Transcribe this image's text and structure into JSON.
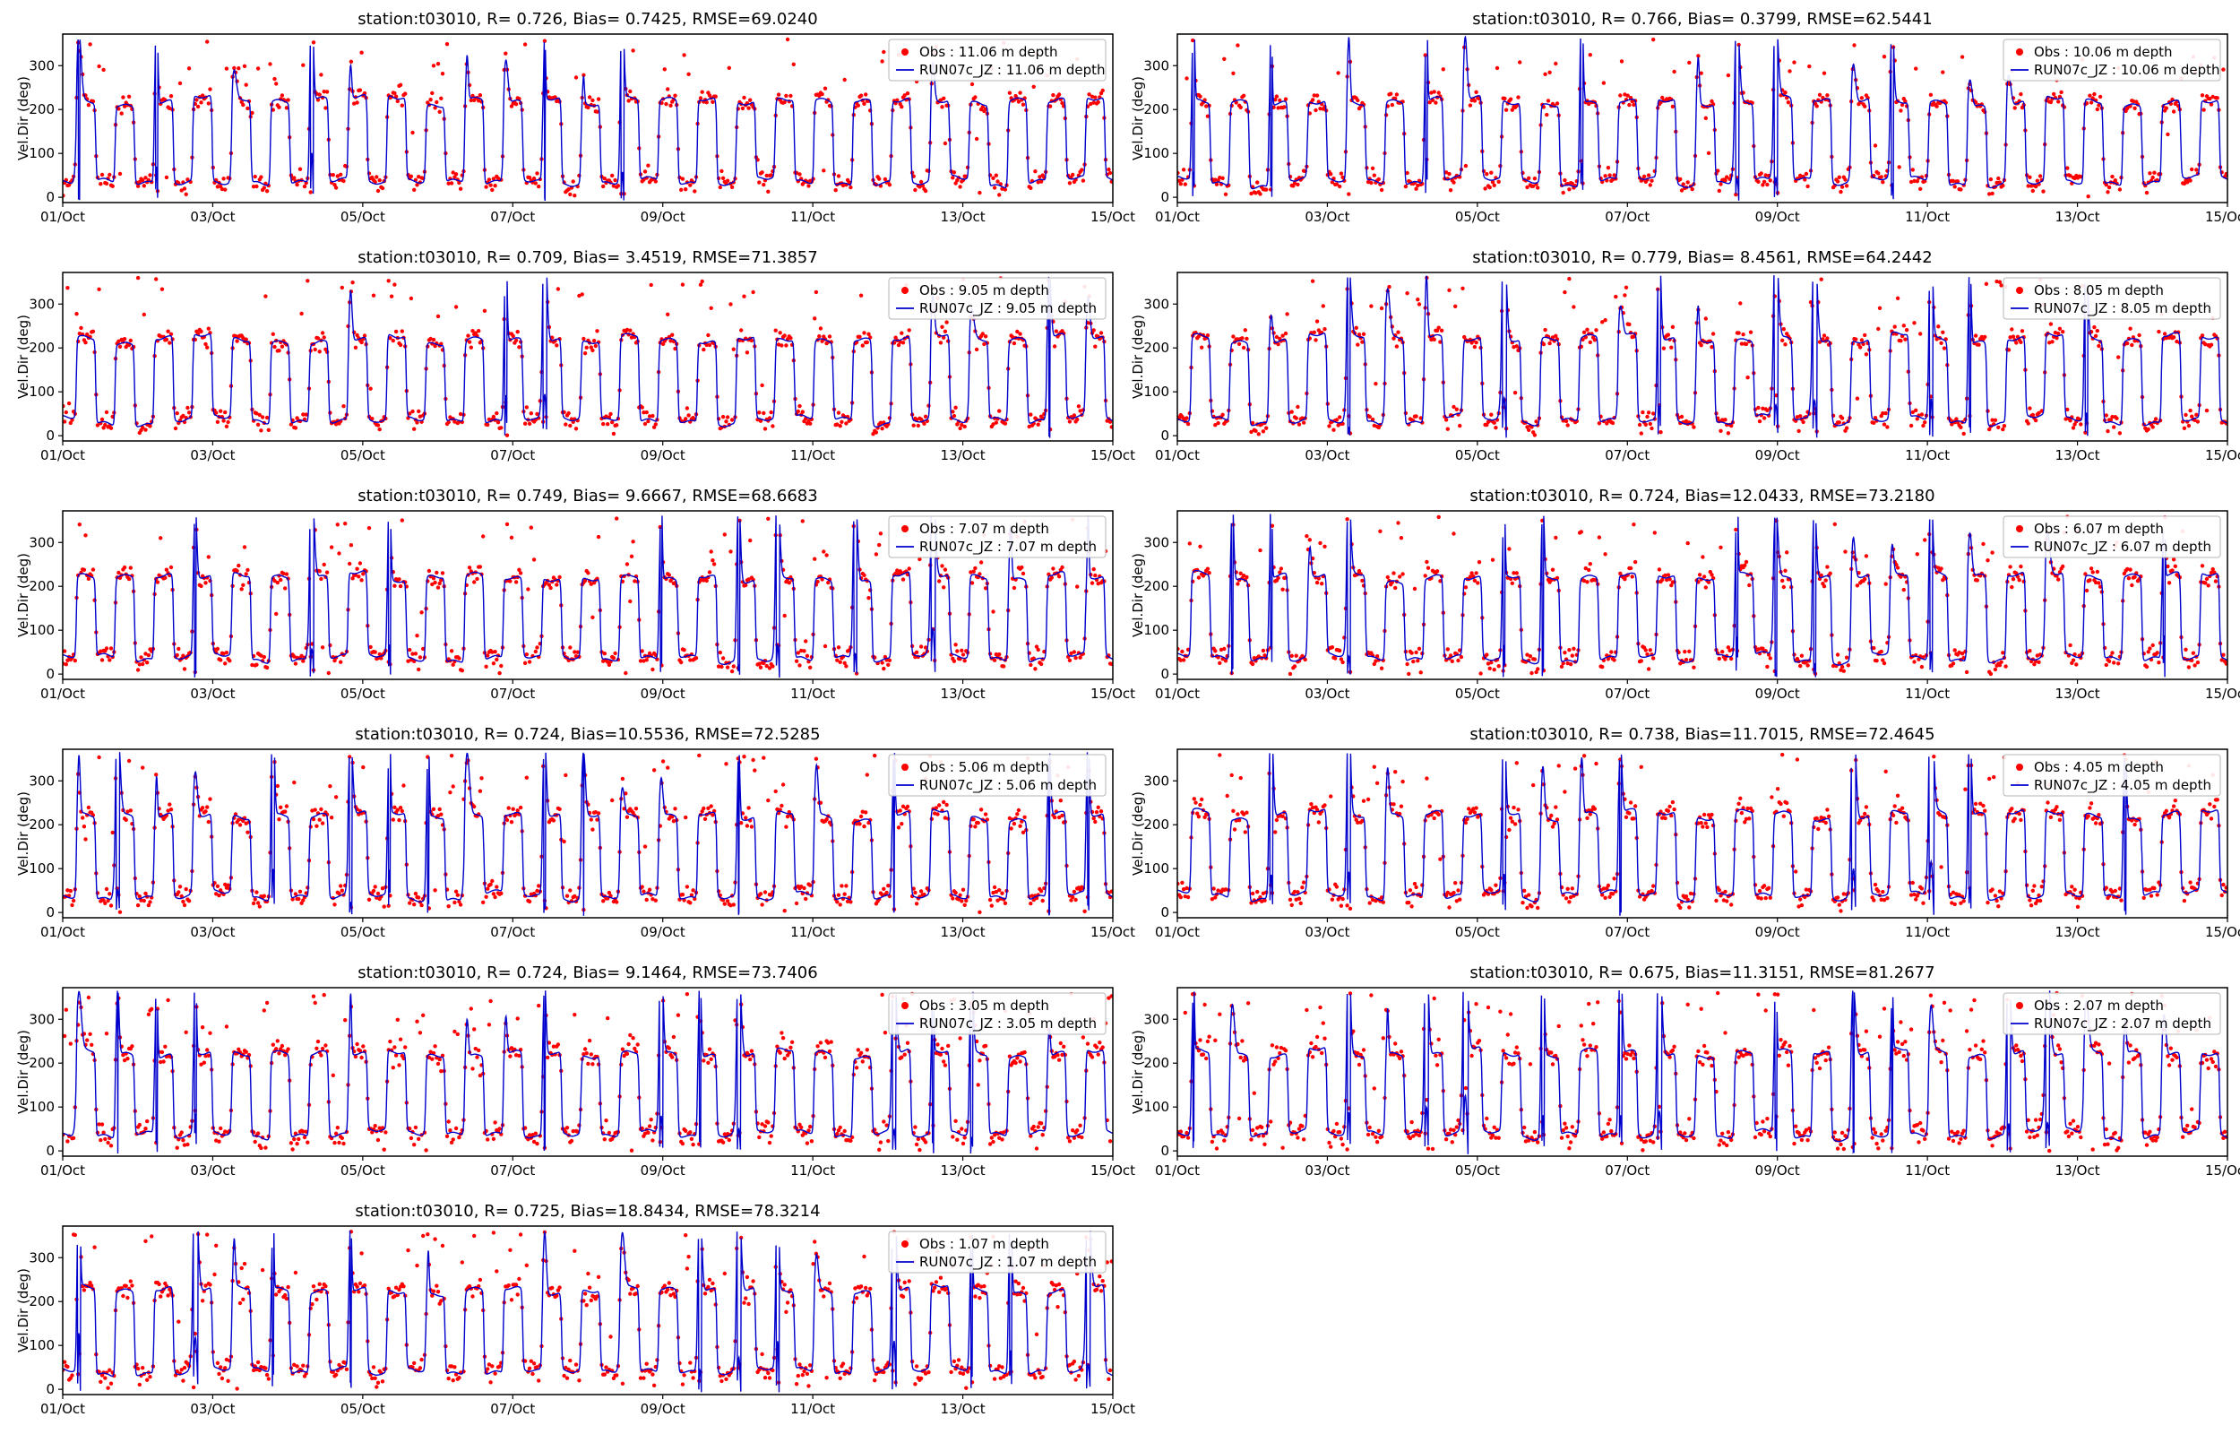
{
  "figure": {
    "rows": 6,
    "cols": 2,
    "background": "#ffffff"
  },
  "chart_data": [
    {
      "type": "scatter+line",
      "title": "station:t03010, R= 0.726, Bias= 0.7425, RMSE=69.0240",
      "station": "t03010",
      "R": 0.726,
      "Bias": 0.7425,
      "RMSE": 69.024,
      "depth": "11.06 m",
      "legend_obs": "Obs : 11.06 m depth",
      "legend_model": "RUN07c_JZ : 11.06 m depth",
      "ylabel": "Vel.Dir (deg)",
      "xticks": [
        "01/Oct",
        "03/Oct",
        "05/Oct",
        "07/Oct",
        "09/Oct",
        "11/Oct",
        "13/Oct",
        "15/Oct"
      ],
      "yticks": [
        0,
        100,
        200,
        300
      ],
      "ylim": [
        -12,
        372
      ],
      "x_range_days": 14,
      "legend_position": "upper right",
      "series": [
        {
          "name": "Obs",
          "style": "scatter",
          "color": "#ff0000"
        },
        {
          "name": "RUN07c_JZ",
          "style": "line",
          "color": "#0000cd"
        }
      ],
      "pattern": {
        "type": "semidiurnal-alternation",
        "period_hours": 12.42,
        "low_deg": 35,
        "high_deg": 220,
        "noise_deg": 10,
        "outlier_rate": 0.05,
        "spike_rate": 0.5,
        "spike_extra": 200,
        "seed": 1
      }
    },
    {
      "type": "scatter+line",
      "title": "station:t03010, R= 0.766, Bias= 0.3799, RMSE=62.5441",
      "station": "t03010",
      "R": 0.766,
      "Bias": 0.3799,
      "RMSE": 62.5441,
      "depth": "10.06 m",
      "legend_obs": "Obs : 10.06 m depth",
      "legend_model": "RUN07c_JZ : 10.06 m depth",
      "ylabel": "Vel.Dir (deg)",
      "xticks": [
        "01/Oct",
        "03/Oct",
        "05/Oct",
        "07/Oct",
        "09/Oct",
        "11/Oct",
        "13/Oct",
        "15/Oct"
      ],
      "yticks": [
        0,
        100,
        200,
        300
      ],
      "ylim": [
        -12,
        372
      ],
      "x_range_days": 14,
      "legend_position": "upper right",
      "series": [
        {
          "name": "Obs",
          "style": "scatter",
          "color": "#ff0000"
        },
        {
          "name": "RUN07c_JZ",
          "style": "line",
          "color": "#0000cd"
        }
      ],
      "pattern": {
        "type": "semidiurnal-alternation",
        "period_hours": 12.42,
        "low_deg": 35,
        "high_deg": 219,
        "noise_deg": 10,
        "outlier_rate": 0.05,
        "spike_rate": 0.5,
        "spike_extra": 200,
        "seed": 2
      }
    },
    {
      "type": "scatter+line",
      "title": "station:t03010, R= 0.709, Bias= 3.4519, RMSE=71.3857",
      "station": "t03010",
      "R": 0.709,
      "Bias": 3.4519,
      "RMSE": 71.3857,
      "depth": "9.05 m",
      "legend_obs": "Obs : 9.05 m depth",
      "legend_model": "RUN07c_JZ : 9.05 m depth",
      "ylabel": "Vel.Dir (deg)",
      "xticks": [
        "01/Oct",
        "03/Oct",
        "05/Oct",
        "07/Oct",
        "09/Oct",
        "11/Oct",
        "13/Oct",
        "15/Oct"
      ],
      "yticks": [
        0,
        100,
        200,
        300
      ],
      "ylim": [
        -12,
        372
      ],
      "x_range_days": 14,
      "legend_position": "upper right",
      "series": [
        {
          "name": "Obs",
          "style": "scatter",
          "color": "#ff0000"
        },
        {
          "name": "RUN07c_JZ",
          "style": "line",
          "color": "#0000cd"
        }
      ],
      "pattern": {
        "type": "semidiurnal-alternation",
        "period_hours": 12.42,
        "low_deg": 36,
        "high_deg": 220,
        "noise_deg": 11,
        "outlier_rate": 0.055,
        "spike_rate": 0.5,
        "spike_extra": 200,
        "seed": 3
      }
    },
    {
      "type": "scatter+line",
      "title": "station:t03010, R= 0.779, Bias= 8.4561, RMSE=64.2442",
      "station": "t03010",
      "R": 0.779,
      "Bias": 8.4561,
      "RMSE": 64.2442,
      "depth": "8.05 m",
      "legend_obs": "Obs : 8.05 m depth",
      "legend_model": "RUN07c_JZ : 8.05 m depth",
      "ylabel": "Vel.Dir (deg)",
      "xticks": [
        "01/Oct",
        "03/Oct",
        "05/Oct",
        "07/Oct",
        "09/Oct",
        "11/Oct",
        "13/Oct",
        "15/Oct"
      ],
      "yticks": [
        0,
        100,
        200,
        300
      ],
      "ylim": [
        -12,
        372
      ],
      "x_range_days": 14,
      "legend_position": "upper right",
      "series": [
        {
          "name": "Obs",
          "style": "scatter",
          "color": "#ff0000"
        },
        {
          "name": "RUN07c_JZ",
          "style": "line",
          "color": "#0000cd"
        }
      ],
      "pattern": {
        "type": "semidiurnal-alternation",
        "period_hours": 12.42,
        "low_deg": 36,
        "high_deg": 221,
        "noise_deg": 11,
        "outlier_rate": 0.05,
        "spike_rate": 0.5,
        "spike_extra": 200,
        "seed": 4
      }
    },
    {
      "type": "scatter+line",
      "title": "station:t03010, R= 0.749, Bias= 9.6667, RMSE=68.6683",
      "station": "t03010",
      "R": 0.749,
      "Bias": 9.6667,
      "RMSE": 68.6683,
      "depth": "7.07 m",
      "legend_obs": "Obs : 7.07 m depth",
      "legend_model": "RUN07c_JZ : 7.07 m depth",
      "ylabel": "Vel.Dir (deg)",
      "xticks": [
        "01/Oct",
        "03/Oct",
        "05/Oct",
        "07/Oct",
        "09/Oct",
        "11/Oct",
        "13/Oct",
        "15/Oct"
      ],
      "yticks": [
        0,
        100,
        200,
        300
      ],
      "ylim": [
        -12,
        372
      ],
      "x_range_days": 14,
      "legend_position": "upper right",
      "series": [
        {
          "name": "Obs",
          "style": "scatter",
          "color": "#ff0000"
        },
        {
          "name": "RUN07c_JZ",
          "style": "line",
          "color": "#0000cd"
        }
      ],
      "pattern": {
        "type": "semidiurnal-alternation",
        "period_hours": 12.42,
        "low_deg": 37,
        "high_deg": 221,
        "noise_deg": 11,
        "outlier_rate": 0.06,
        "spike_rate": 0.5,
        "spike_extra": 200,
        "seed": 5
      }
    },
    {
      "type": "scatter+line",
      "title": "station:t03010, R= 0.724, Bias=12.0433, RMSE=73.2180",
      "station": "t03010",
      "R": 0.724,
      "Bias": 12.0433,
      "RMSE": 73.218,
      "depth": "6.07 m",
      "legend_obs": "Obs : 6.07 m depth",
      "legend_model": "RUN07c_JZ : 6.07 m depth",
      "ylabel": "Vel.Dir (deg)",
      "xticks": [
        "01/Oct",
        "03/Oct",
        "05/Oct",
        "07/Oct",
        "09/Oct",
        "11/Oct",
        "13/Oct",
        "15/Oct"
      ],
      "yticks": [
        0,
        100,
        200,
        300
      ],
      "ylim": [
        -12,
        372
      ],
      "x_range_days": 14,
      "legend_position": "upper right",
      "series": [
        {
          "name": "Obs",
          "style": "scatter",
          "color": "#ff0000"
        },
        {
          "name": "RUN07c_JZ",
          "style": "line",
          "color": "#0000cd"
        }
      ],
      "pattern": {
        "type": "semidiurnal-alternation",
        "period_hours": 12.42,
        "low_deg": 37,
        "high_deg": 222,
        "noise_deg": 12,
        "outlier_rate": 0.06,
        "spike_rate": 0.5,
        "spike_extra": 200,
        "seed": 6
      }
    },
    {
      "type": "scatter+line",
      "title": "station:t03010, R= 0.724, Bias=10.5536, RMSE=72.5285",
      "station": "t03010",
      "R": 0.724,
      "Bias": 10.5536,
      "RMSE": 72.5285,
      "depth": "5.06 m",
      "legend_obs": "Obs : 5.06 m depth",
      "legend_model": "RUN07c_JZ : 5.06 m depth",
      "ylabel": "Vel.Dir (deg)",
      "xticks": [
        "01/Oct",
        "03/Oct",
        "05/Oct",
        "07/Oct",
        "09/Oct",
        "11/Oct",
        "13/Oct",
        "15/Oct"
      ],
      "yticks": [
        0,
        100,
        200,
        300
      ],
      "ylim": [
        -12,
        372
      ],
      "x_range_days": 14,
      "legend_position": "upper right",
      "series": [
        {
          "name": "Obs",
          "style": "scatter",
          "color": "#ff0000"
        },
        {
          "name": "RUN07c_JZ",
          "style": "line",
          "color": "#0000cd"
        }
      ],
      "pattern": {
        "type": "semidiurnal-alternation",
        "period_hours": 12.42,
        "low_deg": 37,
        "high_deg": 222,
        "noise_deg": 12,
        "outlier_rate": 0.06,
        "spike_rate": 0.5,
        "spike_extra": 200,
        "seed": 7
      }
    },
    {
      "type": "scatter+line",
      "title": "station:t03010, R= 0.738, Bias=11.7015, RMSE=72.4645",
      "station": "t03010",
      "R": 0.738,
      "Bias": 11.7015,
      "RMSE": 72.4645,
      "depth": "4.05 m",
      "legend_obs": "Obs : 4.05 m depth",
      "legend_model": "RUN07c_JZ : 4.05 m depth",
      "ylabel": "Vel.Dir (deg)",
      "xticks": [
        "01/Oct",
        "03/Oct",
        "05/Oct",
        "07/Oct",
        "09/Oct",
        "11/Oct",
        "13/Oct",
        "15/Oct"
      ],
      "yticks": [
        0,
        100,
        200,
        300
      ],
      "ylim": [
        -12,
        372
      ],
      "x_range_days": 14,
      "legend_position": "upper right",
      "series": [
        {
          "name": "Obs",
          "style": "scatter",
          "color": "#ff0000"
        },
        {
          "name": "RUN07c_JZ",
          "style": "line",
          "color": "#0000cd"
        }
      ],
      "pattern": {
        "type": "semidiurnal-alternation",
        "period_hours": 12.42,
        "low_deg": 38,
        "high_deg": 223,
        "noise_deg": 12,
        "outlier_rate": 0.065,
        "spike_rate": 0.5,
        "spike_extra": 200,
        "seed": 8
      }
    },
    {
      "type": "scatter+line",
      "title": "station:t03010, R= 0.724, Bias= 9.1464, RMSE=73.7406",
      "station": "t03010",
      "R": 0.724,
      "Bias": 9.1464,
      "RMSE": 73.7406,
      "depth": "3.05 m",
      "legend_obs": "Obs : 3.05 m depth",
      "legend_model": "RUN07c_JZ : 3.05 m depth",
      "ylabel": "Vel.Dir (deg)",
      "xticks": [
        "01/Oct",
        "03/Oct",
        "05/Oct",
        "07/Oct",
        "09/Oct",
        "11/Oct",
        "13/Oct",
        "15/Oct"
      ],
      "yticks": [
        0,
        100,
        200,
        300
      ],
      "ylim": [
        -12,
        372
      ],
      "x_range_days": 14,
      "legend_position": "upper right",
      "series": [
        {
          "name": "Obs",
          "style": "scatter",
          "color": "#ff0000"
        },
        {
          "name": "RUN07c_JZ",
          "style": "line",
          "color": "#0000cd"
        }
      ],
      "pattern": {
        "type": "semidiurnal-alternation",
        "period_hours": 12.42,
        "low_deg": 38,
        "high_deg": 223,
        "noise_deg": 13,
        "outlier_rate": 0.07,
        "spike_rate": 0.5,
        "spike_extra": 200,
        "seed": 9
      }
    },
    {
      "type": "scatter+line",
      "title": "station:t03010, R= 0.675, Bias=11.3151, RMSE=81.2677",
      "station": "t03010",
      "R": 0.675,
      "Bias": 11.3151,
      "RMSE": 81.2677,
      "depth": "2.07 m",
      "legend_obs": "Obs : 2.07 m depth",
      "legend_model": "RUN07c_JZ : 2.07 m depth",
      "ylabel": "Vel.Dir (deg)",
      "xticks": [
        "01/Oct",
        "03/Oct",
        "05/Oct",
        "07/Oct",
        "09/Oct",
        "11/Oct",
        "13/Oct",
        "15/Oct"
      ],
      "yticks": [
        0,
        100,
        200,
        300
      ],
      "ylim": [
        -12,
        372
      ],
      "x_range_days": 14,
      "legend_position": "upper right",
      "series": [
        {
          "name": "Obs",
          "style": "scatter",
          "color": "#ff0000"
        },
        {
          "name": "RUN07c_JZ",
          "style": "line",
          "color": "#0000cd"
        }
      ],
      "pattern": {
        "type": "semidiurnal-alternation",
        "period_hours": 12.42,
        "low_deg": 38,
        "high_deg": 224,
        "noise_deg": 13,
        "outlier_rate": 0.07,
        "spike_rate": 0.55,
        "spike_extra": 210,
        "seed": 10
      }
    },
    {
      "type": "scatter+line",
      "title": "station:t03010, R= 0.725, Bias=18.8434, RMSE=78.3214",
      "station": "t03010",
      "R": 0.725,
      "Bias": 18.8434,
      "RMSE": 78.3214,
      "depth": "1.07 m",
      "legend_obs": "Obs : 1.07 m depth",
      "legend_model": "RUN07c_JZ : 1.07 m depth",
      "ylabel": "Vel.Dir (deg)",
      "xticks": [
        "01/Oct",
        "03/Oct",
        "05/Oct",
        "07/Oct",
        "09/Oct",
        "11/Oct",
        "13/Oct",
        "15/Oct"
      ],
      "yticks": [
        0,
        100,
        200,
        300
      ],
      "ylim": [
        -12,
        372
      ],
      "x_range_days": 14,
      "legend_position": "upper right",
      "series": [
        {
          "name": "Obs",
          "style": "scatter",
          "color": "#ff0000"
        },
        {
          "name": "RUN07c_JZ",
          "style": "line",
          "color": "#0000cd"
        }
      ],
      "pattern": {
        "type": "semidiurnal-alternation",
        "period_hours": 12.42,
        "low_deg": 40,
        "high_deg": 227,
        "noise_deg": 13,
        "outlier_rate": 0.08,
        "spike_rate": 0.55,
        "spike_extra": 210,
        "seed": 11
      }
    }
  ]
}
